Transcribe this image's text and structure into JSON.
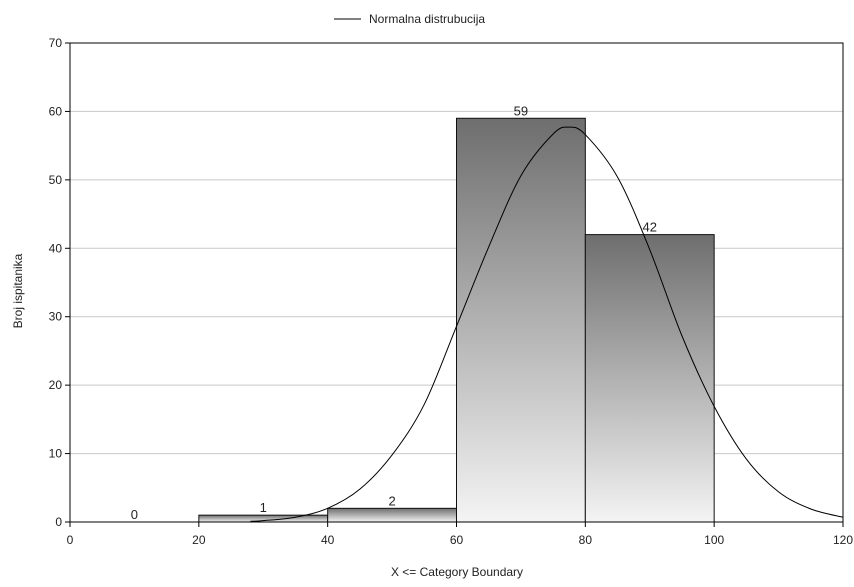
{
  "chart_data": {
    "type": "bar",
    "subtype": "histogram",
    "legend": {
      "entries": [
        "Normalna distrubucija"
      ],
      "placement": "top-center"
    },
    "xlabel": "X <=  Category Boundary",
    "ylabel": "Broj ispitanika",
    "xlim": [
      0,
      120
    ],
    "ylim": [
      0,
      70
    ],
    "xticks": [
      "0",
      "20",
      "40",
      "60",
      "80",
      "100",
      "120"
    ],
    "yticks": [
      "0",
      "10",
      "20",
      "30",
      "40",
      "50",
      "60",
      "70"
    ],
    "grid": "horizontal",
    "bins": [
      {
        "from": 0,
        "to": 20,
        "value": 0,
        "label": "0"
      },
      {
        "from": 20,
        "to": 40,
        "value": 1,
        "label": "1"
      },
      {
        "from": 40,
        "to": 60,
        "value": 2,
        "label": "2"
      },
      {
        "from": 60,
        "to": 80,
        "value": 59,
        "label": "59"
      },
      {
        "from": 80,
        "to": 100,
        "value": 42,
        "label": "42"
      }
    ],
    "series": [
      {
        "name": "Normalna distrubucija",
        "type": "line",
        "x": [
          28,
          30,
          35,
          40,
          45,
          50,
          55,
          60,
          65,
          70,
          75,
          77.5,
          80,
          85,
          90,
          95,
          100,
          105,
          110,
          115,
          120
        ],
        "y": [
          0.1,
          0.2,
          0.7,
          2.0,
          4.8,
          9.8,
          17.2,
          28.6,
          40.2,
          50.6,
          56.7,
          57.7,
          56.6,
          50.4,
          39.8,
          27.2,
          16.9,
          9.2,
          4.4,
          1.9,
          0.7
        ]
      }
    ],
    "colors": {
      "bar_dark": "#6e6e6e",
      "bar_light": "#f4f4f4",
      "grid": "#c9c9c9"
    }
  }
}
